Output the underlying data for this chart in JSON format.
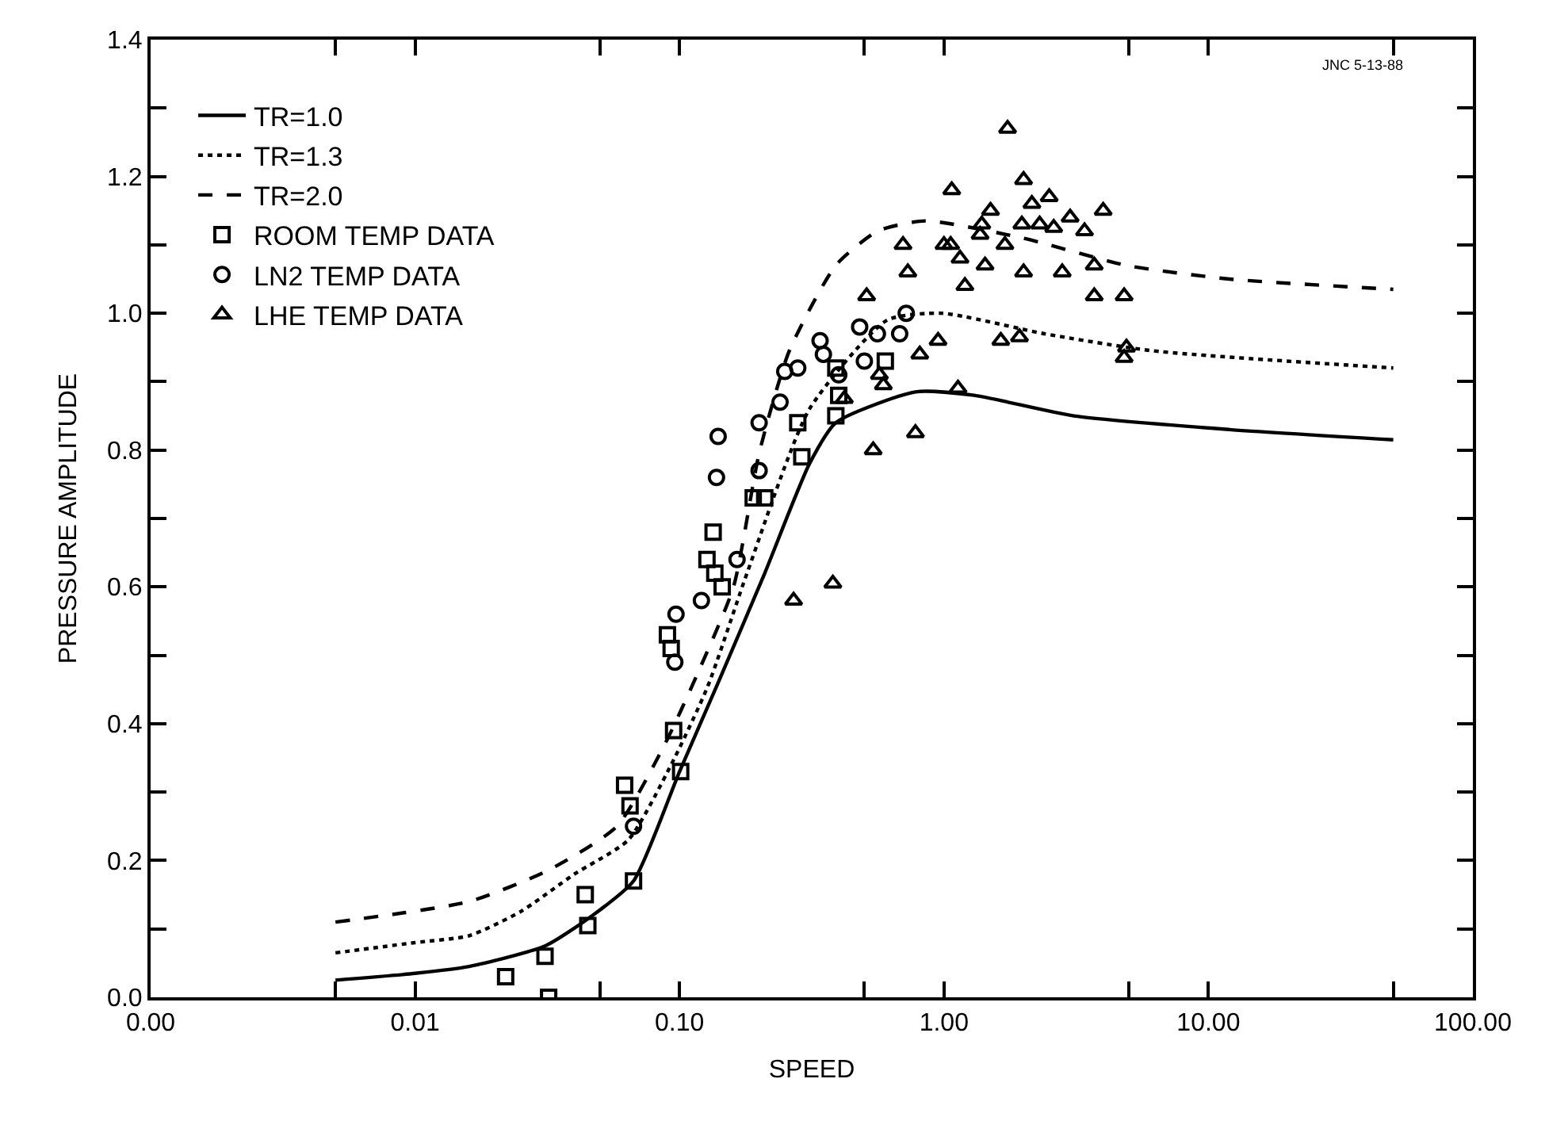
{
  "chart_data": {
    "type": "scatter",
    "xlabel": "SPEED",
    "ylabel": "PRESSURE AMPLITUDE",
    "log": "x",
    "legend": "top left",
    "annotations": [
      "JNC 5-13-88"
    ],
    "xlim": [
      0.001,
      100
    ],
    "ylim": [
      0,
      1.4
    ],
    "xticks": [
      {
        "value": 0.001,
        "label": "0.00"
      },
      {
        "value": 0.005,
        "label": null
      },
      {
        "value": 0.01,
        "label": "0.01"
      },
      {
        "value": 0.05,
        "label": null
      },
      {
        "value": 0.1,
        "label": "0.10"
      },
      {
        "value": 0.5,
        "label": null
      },
      {
        "value": 1,
        "label": "1.00"
      },
      {
        "value": 5,
        "label": null
      },
      {
        "value": 10,
        "label": "10.00"
      },
      {
        "value": 50,
        "label": null
      },
      {
        "value": 100,
        "label": "100.00"
      }
    ],
    "yticks": [
      {
        "value": 0,
        "label": "0.0"
      },
      {
        "value": 0.1,
        "label": null
      },
      {
        "value": 0.2,
        "label": "0.2"
      },
      {
        "value": 0.3,
        "label": null
      },
      {
        "value": 0.4,
        "label": "0.4"
      },
      {
        "value": 0.5,
        "label": null
      },
      {
        "value": 0.6,
        "label": "0.6"
      },
      {
        "value": 0.7,
        "label": null
      },
      {
        "value": 0.8,
        "label": "0.8"
      },
      {
        "value": 0.9,
        "label": null
      },
      {
        "value": 1.0,
        "label": "1.0"
      },
      {
        "value": 1.1,
        "label": null
      },
      {
        "value": 1.2,
        "label": "1.2"
      },
      {
        "value": 1.3,
        "label": null
      },
      {
        "value": 1.4,
        "label": "1.4"
      }
    ],
    "series": [
      {
        "name": "TR=1.0",
        "type": "line",
        "line_style": "solid",
        "marker": "none",
        "color": "#000000",
        "x": [
          0.005,
          0.01,
          0.016,
          0.031,
          0.047,
          0.067,
          0.1,
          0.14,
          0.21,
          0.31,
          0.39,
          0.78,
          1.3,
          3.1,
          12,
          50
        ],
        "values": [
          0.025,
          0.035,
          0.045,
          0.075,
          0.12,
          0.17,
          0.33,
          0.46,
          0.62,
          0.78,
          0.84,
          0.885,
          0.88,
          0.85,
          0.83,
          0.815
        ]
      },
      {
        "name": "TR=1.3",
        "type": "line",
        "line_style": "dotted",
        "marker": "none",
        "color": "#000000",
        "x": [
          0.005,
          0.01,
          0.016,
          0.025,
          0.04,
          0.064,
          0.093,
          0.128,
          0.18,
          0.31,
          0.61,
          0.98,
          2.4,
          6.2,
          50
        ],
        "values": [
          0.065,
          0.08,
          0.09,
          0.125,
          0.18,
          0.23,
          0.34,
          0.455,
          0.62,
          0.86,
          0.99,
          1.0,
          0.97,
          0.945,
          0.92
        ]
      },
      {
        "name": "TR=2.0",
        "type": "line",
        "line_style": "dashed",
        "marker": "none",
        "color": "#000000",
        "x": [
          0.005,
          0.016,
          0.032,
          0.058,
          0.088,
          0.116,
          0.16,
          0.2,
          0.26,
          0.39,
          0.56,
          0.85,
          1.98,
          4.9,
          12,
          50
        ],
        "values": [
          0.11,
          0.14,
          0.186,
          0.25,
          0.37,
          0.47,
          0.6,
          0.795,
          0.945,
          1.07,
          1.12,
          1.135,
          1.11,
          1.07,
          1.05,
          1.035
        ]
      },
      {
        "name": "ROOM TEMP DATA",
        "marker": "square",
        "color": "#000000",
        "x": [
          0.032,
          0.022,
          0.031,
          0.045,
          0.044,
          0.067,
          0.065,
          0.062,
          0.101,
          0.095,
          0.093,
          0.09,
          0.145,
          0.136,
          0.127,
          0.134,
          0.19,
          0.21,
          0.29,
          0.28,
          0.39,
          0.4,
          0.39,
          0.6
        ],
        "values": [
          0.0,
          0.03,
          0.06,
          0.105,
          0.15,
          0.17,
          0.28,
          0.31,
          0.33,
          0.39,
          0.51,
          0.53,
          0.6,
          0.62,
          0.64,
          0.68,
          0.73,
          0.73,
          0.79,
          0.84,
          0.85,
          0.88,
          0.92,
          0.93
        ]
      },
      {
        "name": "LN2 TEMP DATA",
        "marker": "circle",
        "color": "#000000",
        "x": [
          0.067,
          0.096,
          0.097,
          0.121,
          0.165,
          0.138,
          0.14,
          0.2,
          0.2,
          0.24,
          0.25,
          0.28,
          0.34,
          0.35,
          0.4,
          0.48,
          0.5,
          0.56,
          0.68,
          0.72
        ],
        "values": [
          0.25,
          0.49,
          0.56,
          0.58,
          0.64,
          0.76,
          0.82,
          0.77,
          0.84,
          0.87,
          0.915,
          0.92,
          0.96,
          0.94,
          0.91,
          0.98,
          0.93,
          0.97,
          0.97,
          1.0
        ]
      },
      {
        "name": "LHE TEMP DATA",
        "marker": "triangle",
        "color": "#000000",
        "x": [
          0.27,
          0.38,
          0.42,
          0.54,
          0.57,
          0.59,
          0.78,
          0.81,
          0.95,
          1.13,
          1.64,
          1.93,
          4.9,
          4.8,
          0.51,
          3.7,
          4.8,
          1.2,
          0.73,
          2.0,
          2.8,
          3.7,
          1.43,
          1.15,
          0.7,
          1.0,
          1.06,
          1.7,
          1.37,
          1.39,
          1.97,
          2.3,
          2.6,
          3.0,
          3.4,
          1.5,
          4.0,
          2.15,
          2.5,
          1.07,
          2.0,
          1.74
        ],
        "values": [
          0.58,
          0.605,
          0.875,
          0.8,
          0.91,
          0.895,
          0.825,
          0.94,
          0.96,
          0.89,
          0.96,
          0.965,
          0.95,
          0.935,
          1.025,
          1.025,
          1.025,
          1.04,
          1.06,
          1.06,
          1.06,
          1.07,
          1.07,
          1.08,
          1.1,
          1.1,
          1.1,
          1.1,
          1.115,
          1.13,
          1.13,
          1.13,
          1.125,
          1.14,
          1.12,
          1.15,
          1.15,
          1.16,
          1.17,
          1.18,
          1.195,
          1.27
        ]
      }
    ]
  }
}
